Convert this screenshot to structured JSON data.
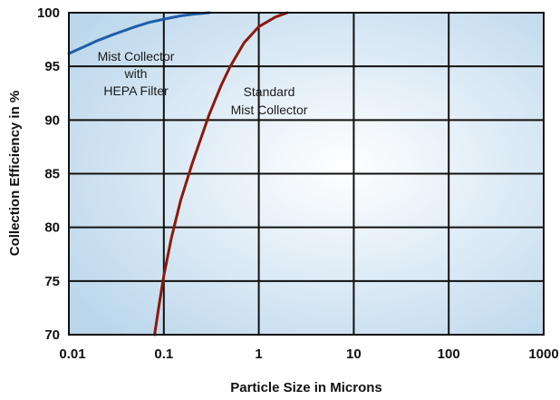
{
  "chart_data": {
    "type": "line",
    "title": "",
    "xlabel": "Particle Size in Microns",
    "ylabel": "Collection Efficiency in %",
    "x_scale": "log",
    "xlim": [
      0.01,
      1000
    ],
    "ylim": [
      70,
      100
    ],
    "x_ticks": [
      0.01,
      0.1,
      1,
      10,
      100,
      1000
    ],
    "x_tick_labels": [
      "0.01",
      "0.1",
      "1",
      "10",
      "100",
      "1000"
    ],
    "y_ticks": [
      70,
      75,
      80,
      85,
      90,
      95,
      100
    ],
    "y_tick_labels": [
      "70",
      "75",
      "80",
      "85",
      "90",
      "95",
      "100"
    ],
    "grid": true,
    "legend": "none",
    "series": [
      {
        "name": "Mist Collector with HEPA Filter",
        "color": "#1f5fa8",
        "x": [
          0.01,
          0.015,
          0.02,
          0.03,
          0.05,
          0.07,
          0.1,
          0.15,
          0.2,
          0.3
        ],
        "y": [
          96.2,
          96.9,
          97.4,
          98.0,
          98.7,
          99.1,
          99.4,
          99.7,
          99.85,
          100
        ]
      },
      {
        "name": "Standard Mist Collector",
        "color": "#8b1a0e",
        "x": [
          0.08,
          0.09,
          0.1,
          0.12,
          0.15,
          0.2,
          0.3,
          0.4,
          0.5,
          0.7,
          1.0,
          1.5,
          2.0
        ],
        "y": [
          70,
          73.0,
          75.5,
          79.0,
          82.5,
          86.0,
          90.5,
          93.2,
          95.0,
          97.2,
          98.7,
          99.6,
          100
        ]
      }
    ],
    "annotations": [
      {
        "lines": [
          "Mist Collector",
          "with",
          "HEPA Filter"
        ],
        "series": 0
      },
      {
        "lines": [
          "Standard",
          "Mist Collector"
        ],
        "series": 1
      }
    ]
  }
}
